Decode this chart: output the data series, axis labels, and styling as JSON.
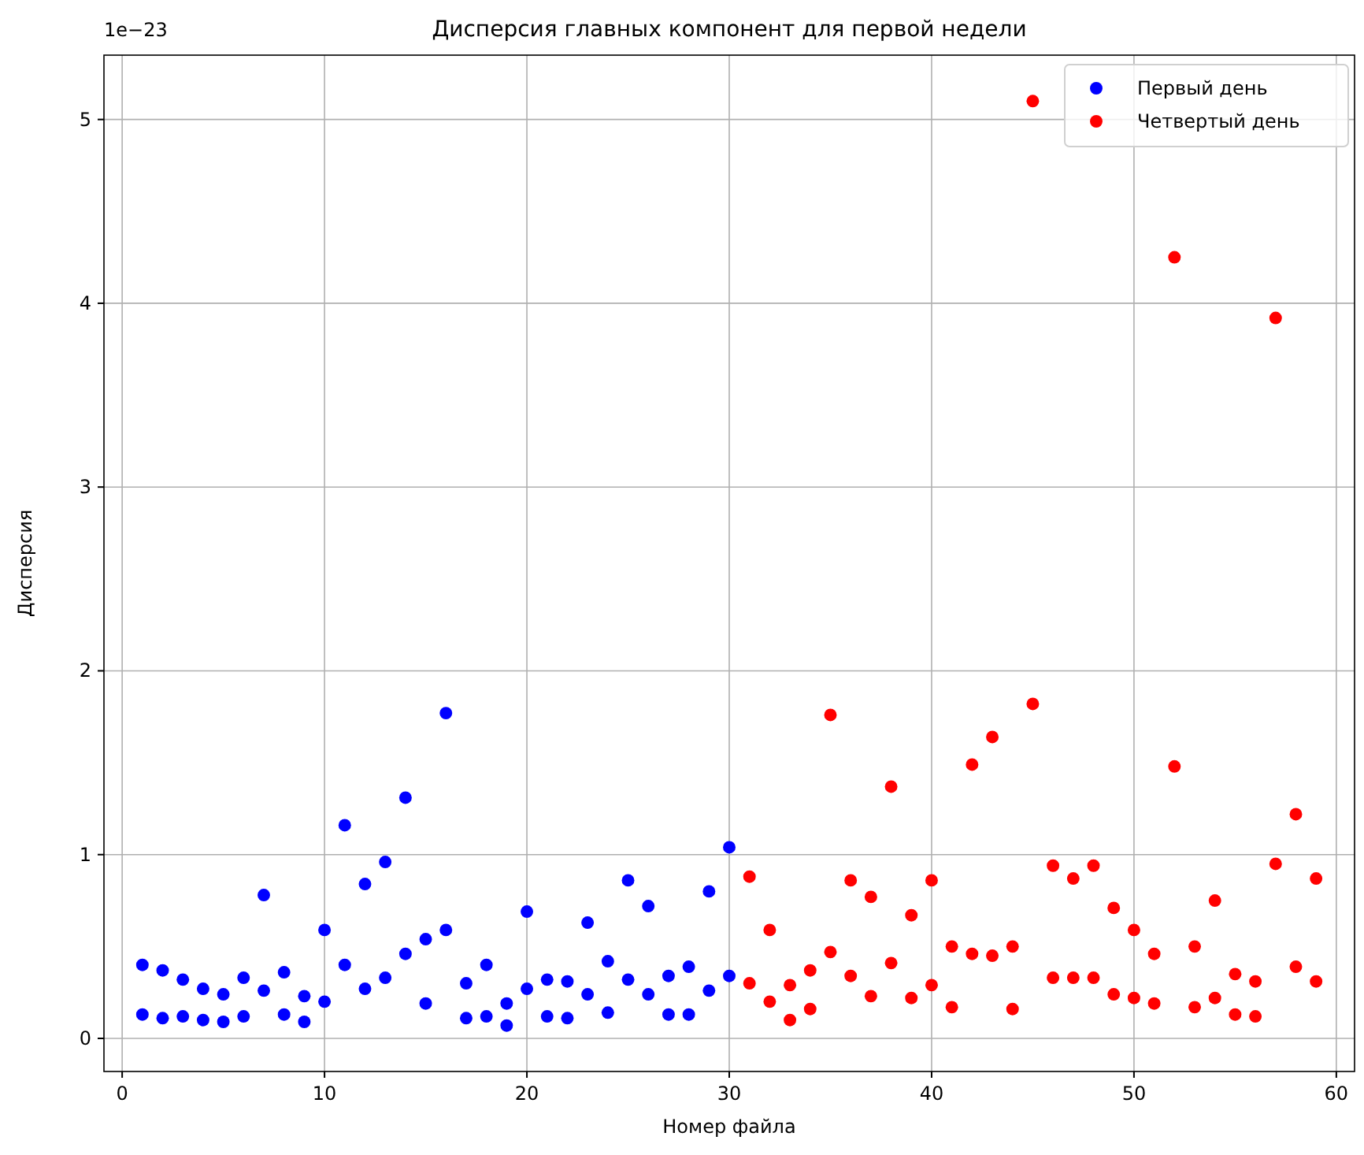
{
  "chart_data": {
    "type": "scatter",
    "title": "Дисперсия главных компонент для первой недели",
    "xlabel": "Номер файла",
    "ylabel": "Дисперсия",
    "annotations": [
      "1e−23"
    ],
    "xlim": [
      -0.9,
      60.9
    ],
    "xticks": [
      0,
      10,
      20,
      30,
      40,
      50,
      60
    ],
    "ylim": [
      -0.18,
      5.35
    ],
    "yticks": [
      0,
      1,
      2,
      3,
      4,
      5
    ],
    "grid": true,
    "legend": "top right",
    "marker": "circle",
    "series": [
      {
        "name": "Первый день",
        "color": "#0000ff",
        "x": [
          1,
          1,
          2,
          2,
          3,
          3,
          4,
          4,
          5,
          5,
          6,
          6,
          7,
          7,
          8,
          8,
          9,
          9,
          10,
          10,
          11,
          11,
          12,
          12,
          13,
          13,
          14,
          14,
          15,
          15,
          16,
          16,
          17,
          17,
          18,
          18,
          19,
          19,
          20,
          20,
          21,
          21,
          22,
          22,
          23,
          23,
          24,
          24,
          25,
          25,
          26,
          26,
          27,
          27,
          28,
          28,
          29,
          29,
          30,
          30
        ],
        "values": [
          0.4,
          0.13,
          0.37,
          0.11,
          0.32,
          0.12,
          0.27,
          0.1,
          0.24,
          0.09,
          0.33,
          0.12,
          0.78,
          0.26,
          0.36,
          0.13,
          0.23,
          0.09,
          0.59,
          0.2,
          1.16,
          0.4,
          0.84,
          0.27,
          0.96,
          0.33,
          1.31,
          0.46,
          0.54,
          0.19,
          1.77,
          0.59,
          0.3,
          0.11,
          0.4,
          0.12,
          0.19,
          0.07,
          0.69,
          0.27,
          0.32,
          0.12,
          0.31,
          0.11,
          0.63,
          0.24,
          0.42,
          0.14,
          0.86,
          0.32,
          0.72,
          0.24,
          0.34,
          0.13,
          0.39,
          0.13,
          0.8,
          0.26,
          1.04,
          0.34
        ]
      },
      {
        "name": "Четвертый день",
        "color": "#ff0000",
        "x": [
          31,
          31,
          32,
          32,
          33,
          33,
          34,
          34,
          35,
          35,
          36,
          36,
          37,
          37,
          38,
          38,
          39,
          39,
          40,
          40,
          41,
          41,
          42,
          42,
          43,
          43,
          44,
          44,
          45,
          45,
          46,
          46,
          47,
          47,
          48,
          48,
          49,
          49,
          50,
          50,
          51,
          51,
          52,
          52,
          53,
          53,
          54,
          54,
          55,
          55,
          56,
          56,
          57,
          57,
          58,
          58,
          59,
          59
        ],
        "values": [
          0.88,
          0.3,
          0.59,
          0.2,
          0.29,
          0.1,
          0.37,
          0.16,
          1.76,
          0.47,
          0.86,
          0.34,
          0.77,
          0.23,
          1.37,
          0.41,
          0.67,
          0.22,
          0.86,
          0.29,
          0.5,
          0.17,
          1.49,
          0.46,
          1.64,
          0.45,
          0.5,
          0.16,
          5.1,
          1.82,
          0.94,
          0.33,
          0.87,
          0.33,
          0.94,
          0.33,
          0.71,
          0.24,
          0.59,
          0.22,
          0.46,
          0.19,
          4.25,
          1.48,
          0.5,
          0.17,
          0.75,
          0.22,
          0.35,
          0.13,
          0.31,
          0.12,
          3.92,
          0.95,
          1.22,
          0.39,
          0.87,
          0.31
        ]
      }
    ]
  }
}
